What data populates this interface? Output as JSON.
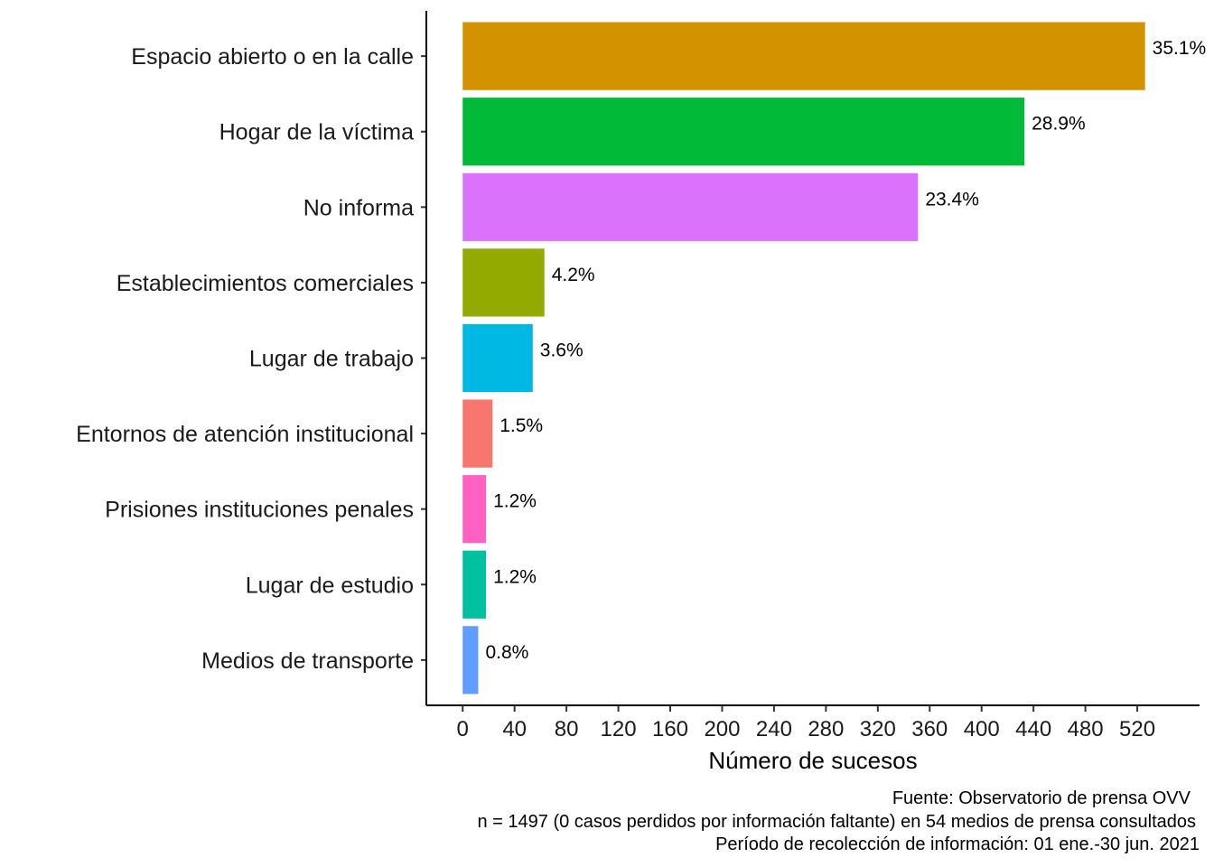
{
  "chart_data": {
    "type": "bar",
    "orientation": "horizontal",
    "categories": [
      "Espacio abierto o en la calle",
      "Hogar de la víctima",
      "No informa",
      "Establecimientos comerciales",
      "Lugar de trabajo",
      "Entornos de atención institucional",
      "Prisiones  instituciones penales",
      "Lugar de estudio",
      "Medios de transporte"
    ],
    "values": [
      526,
      433,
      351,
      63,
      54,
      23,
      18,
      18,
      12
    ],
    "labels": [
      "35.1%",
      "28.9%",
      "23.4%",
      "4.2%",
      "3.6%",
      "1.5%",
      "1.2%",
      "1.2%",
      "0.8%"
    ],
    "colors": [
      "#D39200",
      "#00BA38",
      "#DB72FB",
      "#93AA00",
      "#00B9E3",
      "#F8766D",
      "#FF61C3",
      "#00C19F",
      "#619CFF"
    ],
    "xlabel": "Número de sucesos",
    "ylabel": "",
    "xlim": [
      -28,
      568
    ],
    "xticks": [
      0,
      40,
      80,
      120,
      160,
      200,
      240,
      280,
      320,
      360,
      400,
      440,
      480,
      520
    ],
    "grid": false,
    "legend": "none",
    "caption": [
      "Fuente: Observatorio de prensa OVV",
      "n = 1497 (0 casos perdidos por información faltante) en 54 medios de prensa consultados",
      "Período de recolección de información: 01 ene.-30 jun. 2021"
    ]
  }
}
